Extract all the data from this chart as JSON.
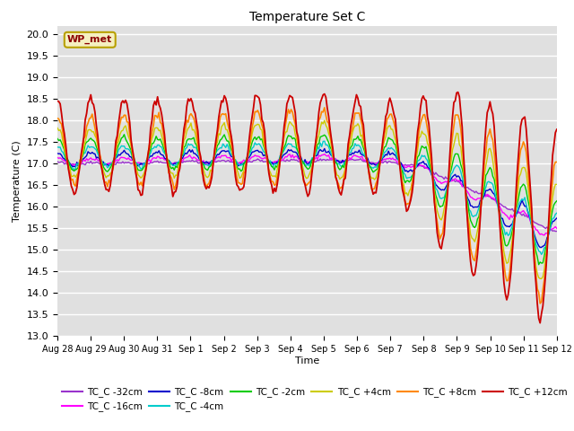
{
  "title": "Temperature Set C",
  "xlabel": "Time",
  "ylabel": "Temperature (C)",
  "ylim": [
    13.0,
    20.2
  ],
  "yticks": [
    13.0,
    13.5,
    14.0,
    14.5,
    15.0,
    15.5,
    16.0,
    16.5,
    17.0,
    17.5,
    18.0,
    18.5,
    19.0,
    19.5,
    20.0
  ],
  "bg_color": "#e0e0e0",
  "grid_color": "white",
  "series_colors": {
    "TC_C -32cm": "#9933cc",
    "TC_C -16cm": "#ff00ff",
    "TC_C -8cm": "#0000cc",
    "TC_C -4cm": "#00cccc",
    "TC_C -2cm": "#00cc00",
    "TC_C +4cm": "#cccc00",
    "TC_C +8cm": "#ff8800",
    "TC_C +12cm": "#cc0000"
  },
  "xtick_labels": [
    "Aug 28",
    "Aug 29",
    "Aug 30",
    "Aug 31",
    "Sep 1",
    "Sep 2",
    "Sep 3",
    "Sep 4",
    "Sep 5",
    "Sep 6",
    "Sep 7",
    "Sep 8",
    "Sep 9",
    "Sep 10",
    "Sep 11",
    "Sep 12"
  ],
  "wp_met_label": "WP_met"
}
